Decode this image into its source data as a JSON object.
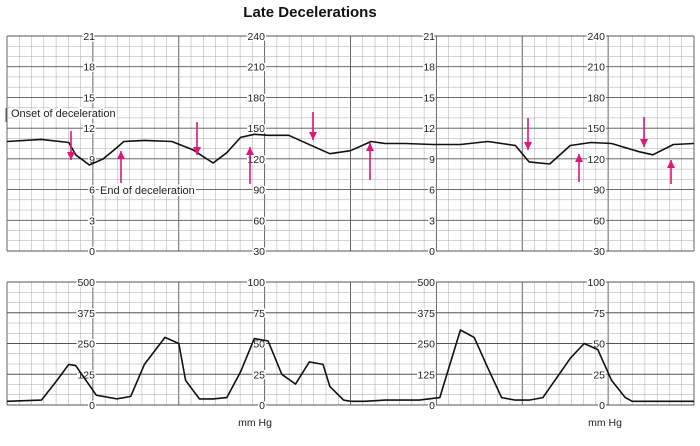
{
  "chart_data": [
    {
      "type": "line",
      "title": "Late Decelerations",
      "left_scale_ticks": [
        0,
        3,
        6,
        9,
        12,
        15,
        18,
        21
      ],
      "right_scale_ticks": [
        30,
        60,
        90,
        120,
        150,
        180,
        210,
        240
      ],
      "ylim": [
        30,
        240
      ],
      "annotations": [
        {
          "label": "Onset of deceleration"
        },
        {
          "label": "End of deceleration"
        }
      ],
      "series": [
        {
          "x": [
            0,
            0.05,
            0.09,
            0.1,
            0.12,
            0.14,
            0.16,
            0.17,
            0.2,
            0.24,
            0.27,
            0.3,
            0.32,
            0.34,
            0.36,
            0.38,
            0.41,
            0.46,
            0.47,
            0.5,
            0.53,
            0.55,
            0.58,
            0.62,
            0.66,
            0.7,
            0.74,
            0.76,
            0.79,
            0.82,
            0.85,
            0.88,
            0.9,
            0.92,
            0.94,
            0.97,
            1.0
          ],
          "values": [
            137,
            139,
            136,
            124,
            114,
            120,
            131,
            137,
            138,
            137,
            129,
            116,
            126,
            141,
            144,
            143,
            143,
            128,
            125,
            128,
            137,
            135,
            135,
            134,
            134,
            137,
            133,
            117,
            115,
            133,
            136,
            135,
            131,
            127,
            124,
            134,
            135
          ]
        }
      ]
    },
    {
      "type": "line",
      "left_scale_ticks": [
        0,
        125,
        250,
        375,
        500
      ],
      "right_scale_ticks": [
        0,
        25,
        50,
        75,
        100
      ],
      "xlabel": "mm Hg",
      "ylim": [
        0,
        100
      ],
      "series": [
        {
          "x": [
            0,
            0.05,
            0.07,
            0.09,
            0.1,
            0.11,
            0.13,
            0.16,
            0.18,
            0.2,
            0.23,
            0.25,
            0.26,
            0.28,
            0.3,
            0.32,
            0.34,
            0.36,
            0.38,
            0.4,
            0.42,
            0.44,
            0.46,
            0.47,
            0.49,
            0.5,
            0.52,
            0.55,
            0.6,
            0.63,
            0.66,
            0.68,
            0.7,
            0.72,
            0.74,
            0.76,
            0.78,
            0.82,
            0.84,
            0.86,
            0.88,
            0.9,
            0.91,
            0.92,
            0.93,
            0.95,
            1.0
          ],
          "values": [
            3,
            4,
            18,
            33,
            32,
            24,
            8,
            5,
            7,
            33,
            55,
            50,
            20,
            5,
            5,
            6,
            27,
            54,
            52,
            25,
            17,
            35,
            33,
            15,
            4,
            3,
            3,
            4,
            4,
            6,
            61,
            55,
            30,
            6,
            4,
            4,
            6,
            38,
            50,
            45,
            20,
            6,
            3,
            3,
            3,
            3,
            3
          ]
        }
      ]
    }
  ]
}
